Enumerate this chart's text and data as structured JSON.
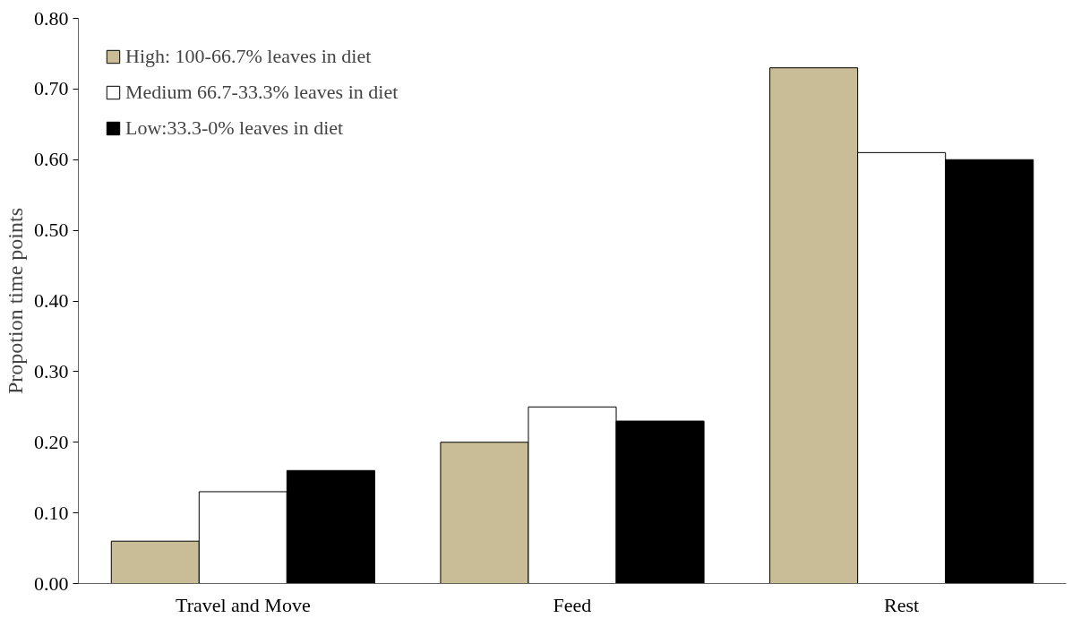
{
  "chart_data": {
    "type": "bar",
    "ylabel": "Propotion time points",
    "categories": [
      "Travel and Move",
      "Feed",
      "Rest"
    ],
    "series": [
      {
        "name": "High: 100-66.7% leaves in diet",
        "color": "#c8bd96",
        "values": [
          0.06,
          0.2,
          0.73
        ]
      },
      {
        "name": "Medium 66.7-33.3% leaves in diet",
        "color": "#ffffff",
        "values": [
          0.13,
          0.25,
          0.61
        ]
      },
      {
        "name": "Low:33.3-0% leaves in diet",
        "color": "#000000",
        "values": [
          0.16,
          0.23,
          0.6
        ]
      }
    ],
    "ylim": [
      0,
      0.8
    ],
    "yticks": [
      {
        "value": 0,
        "label": "0.00"
      },
      {
        "value": 0.1,
        "label": "0.10"
      },
      {
        "value": 0.2,
        "label": "0.20"
      },
      {
        "value": 0.3,
        "label": "0.30"
      },
      {
        "value": 0.4,
        "label": "0.40"
      },
      {
        "value": 0.5,
        "label": "0.50"
      },
      {
        "value": 0.6,
        "label": "0.60"
      },
      {
        "value": 0.7,
        "label": "0.70"
      },
      {
        "value": 0.8,
        "label": "0.80"
      }
    ],
    "grid": false,
    "legend": "top left"
  }
}
